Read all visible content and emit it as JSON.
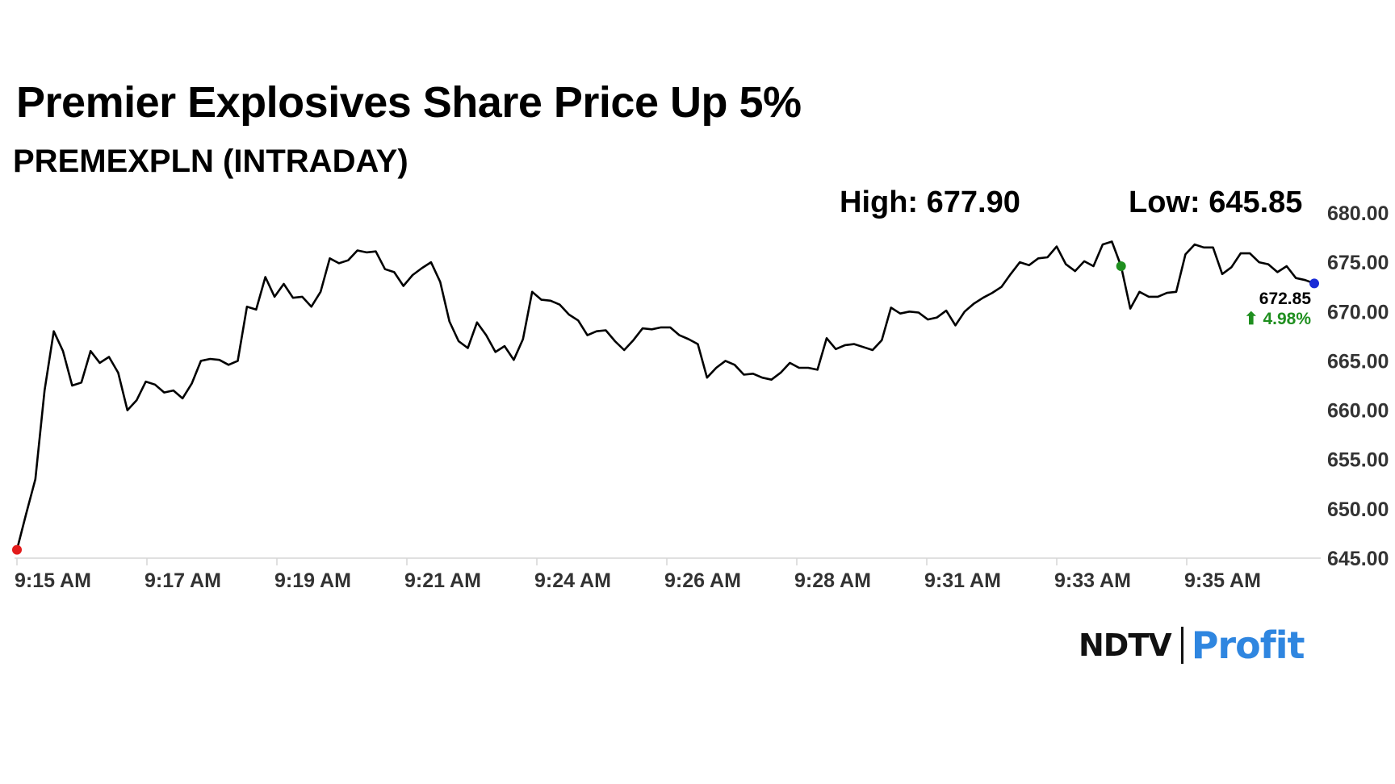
{
  "chart_data": {
    "type": "line",
    "title": "Premier Explosives Share Price Up 5%",
    "subtitle": "PREMEXPLN (INTRADAY)",
    "high_label": "High: 677.90",
    "low_label": "Low: 645.85",
    "last_price": "672.85",
    "change": "⬆ 4.98%",
    "x_tick_labels": [
      "9:15 AM",
      "9:17 AM",
      "9:19 AM",
      "9:21 AM",
      "9:24 AM",
      "9:26 AM",
      "9:28 AM",
      "9:31 AM",
      "9:33 AM",
      "9:35 AM"
    ],
    "y_tick_labels": [
      "680.00",
      "675.00",
      "670.00",
      "665.00",
      "660.00",
      "655.00",
      "650.00",
      "645.00"
    ],
    "ylim": [
      645,
      680
    ],
    "grid": false,
    "line_color": "#000000",
    "start_marker_color": "#e31b1b",
    "high_marker_color": "#1f8f1f",
    "last_marker_color": "#1a2bd6",
    "change_color": "#1f8f1f",
    "values": [
      645.85,
      649.5,
      653,
      662,
      668,
      666,
      662.5,
      662.8,
      666,
      664.8,
      665.4,
      663.8,
      660,
      661,
      662.9,
      662.6,
      661.8,
      662,
      661.2,
      662.7,
      665,
      665.2,
      665.1,
      664.6,
      665,
      670.5,
      670.2,
      673.5,
      671.5,
      672.8,
      671.4,
      671.5,
      670.5,
      672,
      675.4,
      674.9,
      675.2,
      676.2,
      676,
      676.1,
      674.3,
      674,
      672.6,
      673.7,
      674.4,
      675,
      673,
      669,
      667,
      666.3,
      668.9,
      667.6,
      665.9,
      666.5,
      665.1,
      667.2,
      672,
      671.2,
      671.1,
      670.7,
      669.7,
      669.1,
      667.6,
      668,
      668.1,
      667,
      666.1,
      667.1,
      668.3,
      668.2,
      668.4,
      668.4,
      667.6,
      667.2,
      666.7,
      663.3,
      664.3,
      665,
      664.6,
      663.6,
      663.7,
      663.3,
      663.1,
      663.8,
      664.8,
      664.3,
      664.3,
      664.1,
      667.3,
      666.2,
      666.6,
      666.7,
      666.4,
      666.1,
      667.1,
      670.4,
      669.8,
      670,
      669.9,
      669.2,
      669.4,
      670.1,
      668.6,
      670,
      670.8,
      671.4,
      671.9,
      672.5,
      673.8,
      675,
      674.7,
      675.4,
      675.5,
      676.6,
      674.8,
      674.1,
      675.1,
      674.6,
      676.8,
      677.1,
      674.6,
      670.3,
      672,
      671.5,
      671.5,
      671.9,
      672,
      675.8,
      676.8,
      676.5,
      676.5,
      673.8,
      674.5,
      675.9,
      675.9,
      675,
      674.8,
      674,
      674.6,
      673.4,
      673.2,
      672.85
    ],
    "high_index": 120
  },
  "logo": {
    "ndtv": "NDTV",
    "profit": "Profit"
  }
}
